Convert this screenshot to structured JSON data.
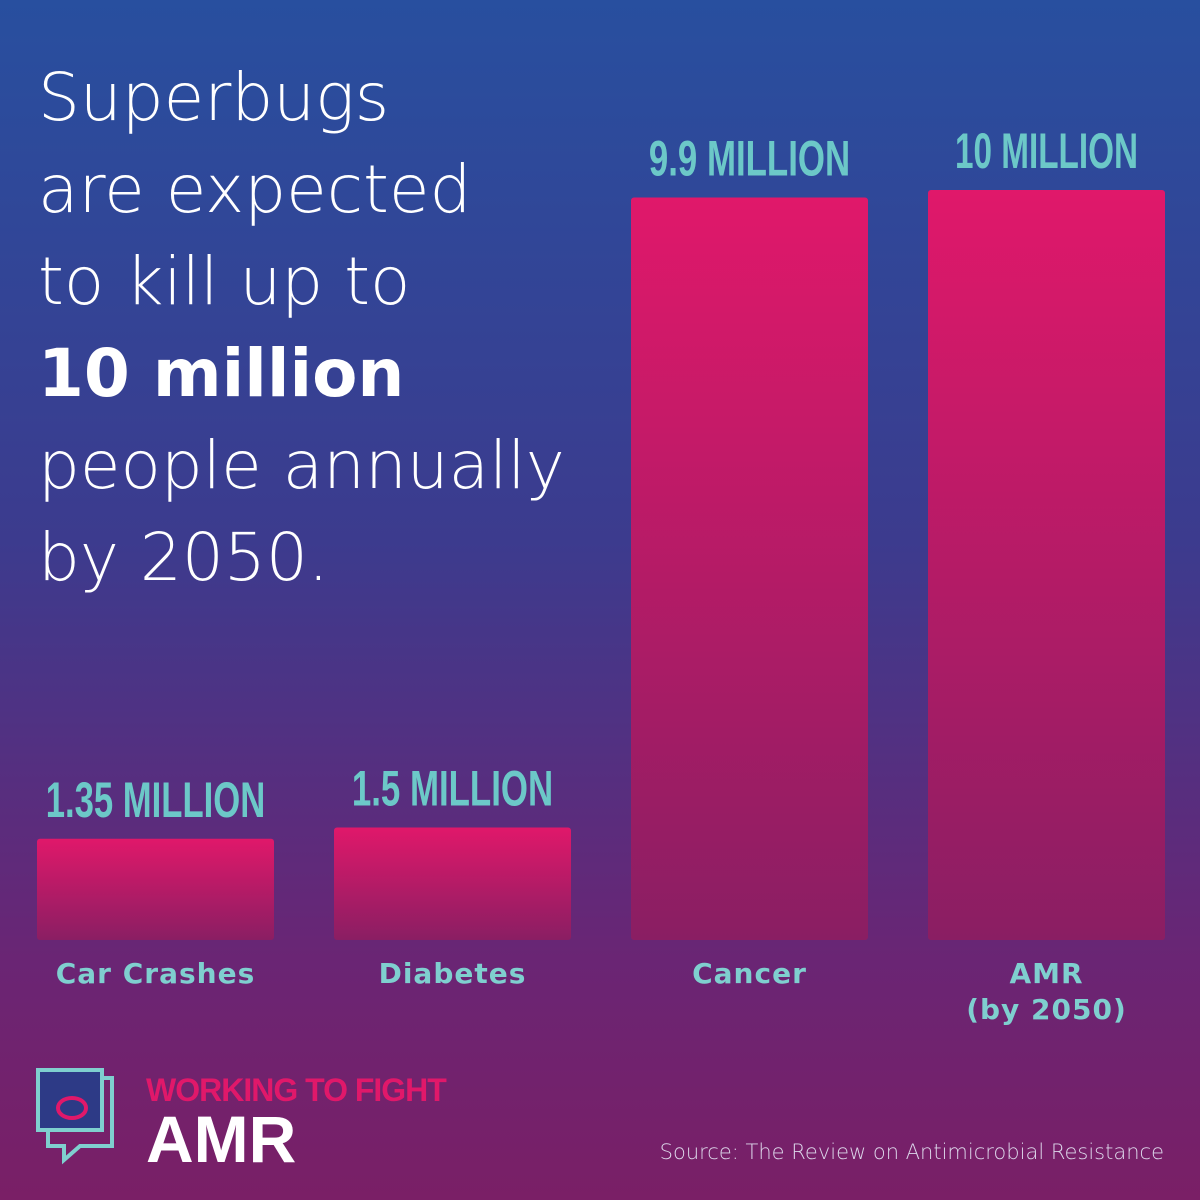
{
  "headline": [
    "Superbugs",
    "are expected",
    "to kill up to",
    "10 million",
    "people annually",
    "by 2050."
  ],
  "chart_data": {
    "type": "bar",
    "categories": [
      "Car Crashes",
      "Diabetes",
      "Cancer",
      "AMR\n(by 2050)"
    ],
    "values": [
      1.35,
      1.5,
      9.9,
      10
    ],
    "value_labels": [
      "1.35 MILLION",
      "1.5 MILLION",
      "9.9 MILLION",
      "10 MILLION"
    ],
    "color": "#e0186a",
    "ylim": [
      0,
      10
    ]
  },
  "logo": {
    "tagline": "WORKING TO FIGHT",
    "name": "AMR"
  },
  "source": "Source: The Review on Antimicrobial Resistance"
}
